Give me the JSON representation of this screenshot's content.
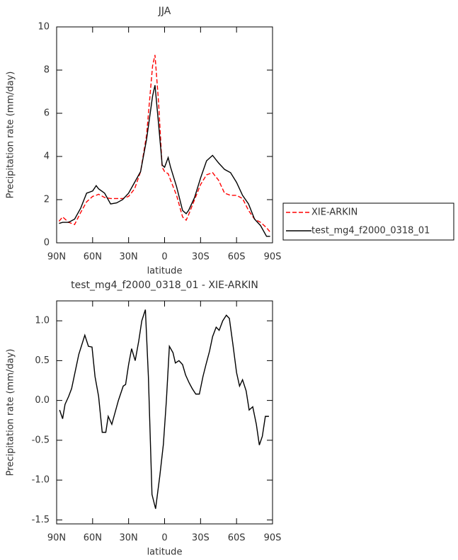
{
  "chart_data": [
    {
      "type": "line",
      "title": "JJA",
      "xlabel": "latitude",
      "ylabel": "Precipitation rate (mm/day)",
      "x": [
        88,
        85,
        80,
        75,
        70,
        65,
        60,
        57,
        55,
        50,
        45,
        40,
        35,
        30,
        25,
        20,
        15,
        10,
        8,
        5,
        2,
        0,
        -3,
        -5,
        -10,
        -15,
        -18,
        -20,
        -25,
        -30,
        -35,
        -40,
        -45,
        -50,
        -55,
        -60,
        -65,
        -70,
        -75,
        -80,
        -85,
        -88
      ],
      "series": [
        {
          "name": "XIE-ARKIN",
          "color": "#ff0000",
          "style": "dashed",
          "values": [
            1.0,
            1.2,
            0.95,
            0.85,
            1.4,
            1.9,
            2.15,
            2.2,
            2.25,
            2.1,
            2.05,
            2.05,
            2.05,
            2.15,
            2.5,
            3.3,
            5.0,
            8.2,
            8.7,
            6.5,
            3.5,
            3.3,
            3.2,
            2.9,
            2.2,
            1.2,
            1.05,
            1.3,
            2.0,
            2.7,
            3.15,
            3.25,
            2.9,
            2.3,
            2.2,
            2.2,
            2.05,
            1.5,
            1.1,
            0.95,
            0.7,
            0.5
          ]
        },
        {
          "name": "test_mg4_f2000_0318_01",
          "color": "#000000",
          "style": "solid",
          "values": [
            0.9,
            0.95,
            0.95,
            1.1,
            1.6,
            2.3,
            2.4,
            2.65,
            2.5,
            2.3,
            1.8,
            1.85,
            2.0,
            2.3,
            2.8,
            3.3,
            4.8,
            6.8,
            7.3,
            5.5,
            3.6,
            3.5,
            3.95,
            3.5,
            2.6,
            1.5,
            1.35,
            1.5,
            2.1,
            3.0,
            3.8,
            4.05,
            3.7,
            3.4,
            3.25,
            2.8,
            2.2,
            1.8,
            1.1,
            0.8,
            0.3,
            0.3
          ]
        }
      ],
      "xlim": [
        90,
        -90
      ],
      "xticks": [
        {
          "value": 90,
          "label": "90N"
        },
        {
          "value": 60,
          "label": "60N"
        },
        {
          "value": 30,
          "label": "30N"
        },
        0,
        {
          "value": -30,
          "label": "30S"
        },
        {
          "value": -60,
          "label": "60S"
        },
        {
          "value": -90,
          "label": "90S"
        }
      ],
      "ylim": [
        0,
        10
      ],
      "yticks": [
        0,
        2,
        4,
        6,
        8,
        10
      ],
      "legend": "right"
    },
    {
      "type": "line",
      "title": "test_mg4_f2000_0318_01 - XIE-ARKIN",
      "xlabel": "latitude",
      "ylabel": "Precipitation rate (mm/day)",
      "x": [
        87.5,
        85,
        83,
        80,
        77.5,
        71.5,
        66.5,
        63.5,
        60.5,
        58,
        55,
        52,
        49,
        47,
        44,
        38.5,
        34.5,
        32.5,
        30,
        27.5,
        24.5,
        21.5,
        19,
        16,
        13.5,
        10.5,
        7.5,
        4,
        1,
        -1.5,
        -4,
        -7,
        -9,
        -12,
        -15,
        -17.5,
        -20.5,
        -23,
        -26,
        -29,
        -32,
        -34.5,
        -37.5,
        -40,
        -43,
        -45.5,
        -48.5,
        -51.5,
        -54,
        -57,
        -60,
        -62.5,
        -65,
        -68,
        -70.5,
        -73.5,
        -76.5,
        -79,
        -81.5,
        -84,
        -87
      ],
      "values": [
        -0.12,
        -0.23,
        -0.05,
        0.05,
        0.15,
        0.58,
        0.82,
        0.68,
        0.67,
        0.3,
        0.05,
        -0.4,
        -0.4,
        -0.2,
        -0.3,
        0.0,
        0.18,
        0.2,
        0.45,
        0.65,
        0.5,
        0.75,
        1.0,
        1.14,
        0.3,
        -1.18,
        -1.36,
        -0.95,
        -0.55,
        0.0,
        0.68,
        0.6,
        0.47,
        0.5,
        0.45,
        0.32,
        0.22,
        0.15,
        0.08,
        0.08,
        0.3,
        0.45,
        0.62,
        0.8,
        0.92,
        0.88,
        1.0,
        1.07,
        1.03,
        0.7,
        0.35,
        0.18,
        0.26,
        0.12,
        -0.12,
        -0.08,
        -0.3,
        -0.56,
        -0.45,
        -0.2,
        -0.2
      ],
      "color": "#000000",
      "xlim": [
        90,
        -90
      ],
      "xticks": [
        {
          "value": 90,
          "label": "90N"
        },
        {
          "value": 60,
          "label": "60N"
        },
        {
          "value": 30,
          "label": "30N"
        },
        0,
        {
          "value": -30,
          "label": "30S"
        },
        {
          "value": -60,
          "label": "60S"
        },
        {
          "value": -90,
          "label": "90S"
        }
      ],
      "ylim": [
        -1.55,
        1.25
      ],
      "yticks": [
        {
          "value": 1,
          "label": "1.0"
        },
        0.5,
        {
          "value": 0,
          "label": "0.0"
        },
        -0.5,
        {
          "value": -1,
          "label": "-1.0"
        },
        {
          "value": -1.5,
          "label": "-1.5"
        }
      ]
    }
  ]
}
